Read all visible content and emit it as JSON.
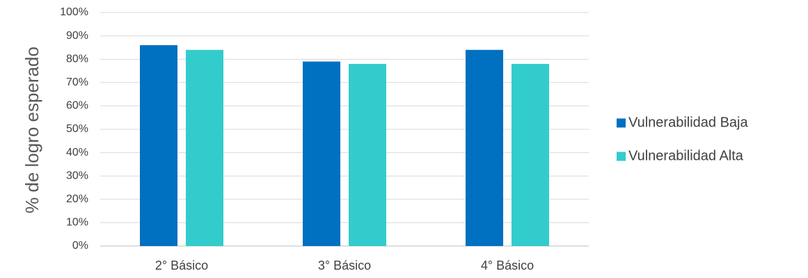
{
  "chart_data": {
    "type": "bar",
    "title": "",
    "xlabel": "",
    "ylabel": "% de logro esperado",
    "categories": [
      "2° Básico",
      "3° Básico",
      "4° Básico"
    ],
    "series": [
      {
        "name": "Vulnerabilidad Baja",
        "values": [
          86,
          79,
          84
        ],
        "color": "#0070c0"
      },
      {
        "name": "Vulnerabilidad Alta",
        "values": [
          84,
          78,
          78
        ],
        "color": "#33cccc"
      }
    ],
    "ylim": [
      0,
      100
    ],
    "yticks": [
      "0%",
      "10%",
      "20%",
      "30%",
      "40%",
      "50%",
      "60%",
      "70%",
      "80%",
      "90%",
      "100%"
    ],
    "grid": true,
    "legend_position": "right"
  }
}
